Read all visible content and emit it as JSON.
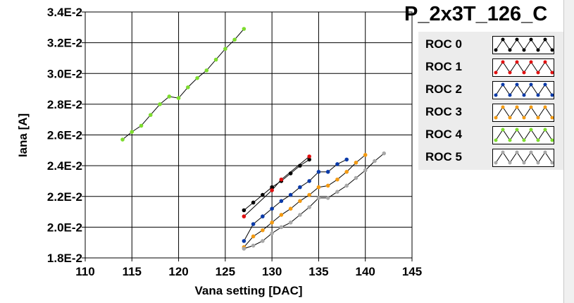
{
  "chart_data": {
    "type": "line",
    "title": "P_2x3T_126_C",
    "xlabel": "Vana setting [DAC]",
    "ylabel": "Iana [A]",
    "xlim": [
      110,
      145
    ],
    "ylim": [
      0.018,
      0.034
    ],
    "x_ticks": [
      "110",
      "115",
      "120",
      "125",
      "130",
      "135",
      "140",
      "145"
    ],
    "y_ticks": [
      "1.8E-2",
      "2.0E-2",
      "2.2E-2",
      "2.4E-2",
      "2.6E-2",
      "2.8E-2",
      "3.0E-2",
      "3.2E-2",
      "3.4E-2"
    ],
    "grid": true,
    "legend_position": "right",
    "series": [
      {
        "name": "ROC 0",
        "color": "#000000",
        "x": [
          127,
          128,
          129,
          130,
          131,
          132,
          133,
          134
        ],
        "y": [
          0.0211,
          0.0216,
          0.0221,
          0.0226,
          0.023,
          0.0235,
          0.024,
          0.0244
        ]
      },
      {
        "name": "ROC 1",
        "color": "#e01010",
        "x": [
          127,
          130,
          131,
          134
        ],
        "y": [
          0.0207,
          0.0224,
          0.0231,
          0.0246
        ]
      },
      {
        "name": "ROC 2",
        "color": "#0a3aa8",
        "x": [
          127,
          128,
          129,
          130,
          131,
          132,
          133,
          134,
          135,
          136,
          137,
          138
        ],
        "y": [
          0.0191,
          0.0202,
          0.0207,
          0.0212,
          0.0217,
          0.0221,
          0.0226,
          0.023,
          0.0236,
          0.0236,
          0.0241,
          0.0244
        ]
      },
      {
        "name": "ROC 3",
        "color": "#f39a12",
        "x": [
          127,
          128,
          129,
          130,
          131,
          132,
          133,
          134,
          135,
          136,
          137,
          138,
          139,
          140
        ],
        "y": [
          0.0187,
          0.0194,
          0.0198,
          0.0203,
          0.0208,
          0.0212,
          0.0217,
          0.0221,
          0.0226,
          0.0227,
          0.0231,
          0.0236,
          0.0242,
          0.0247
        ]
      },
      {
        "name": "ROC 4",
        "color": "#7ddc2e",
        "x": [
          114,
          115,
          116,
          117,
          118,
          119,
          120,
          121,
          122,
          123,
          124,
          125,
          126,
          127
        ],
        "y": [
          0.0257,
          0.0262,
          0.0266,
          0.0273,
          0.028,
          0.0285,
          0.0284,
          0.0291,
          0.0297,
          0.0302,
          0.0309,
          0.0316,
          0.0322,
          0.0329
        ]
      },
      {
        "name": "ROC 5",
        "color": "#a8a8a8",
        "x": [
          127,
          128,
          129,
          130,
          131,
          132,
          133,
          134,
          135,
          136,
          137,
          138,
          139,
          140,
          141,
          142
        ],
        "y": [
          0.0186,
          0.0188,
          0.0191,
          0.0196,
          0.02,
          0.0203,
          0.0208,
          0.0213,
          0.0219,
          0.0219,
          0.0223,
          0.0227,
          0.0232,
          0.0237,
          0.0243,
          0.0248
        ]
      }
    ]
  }
}
